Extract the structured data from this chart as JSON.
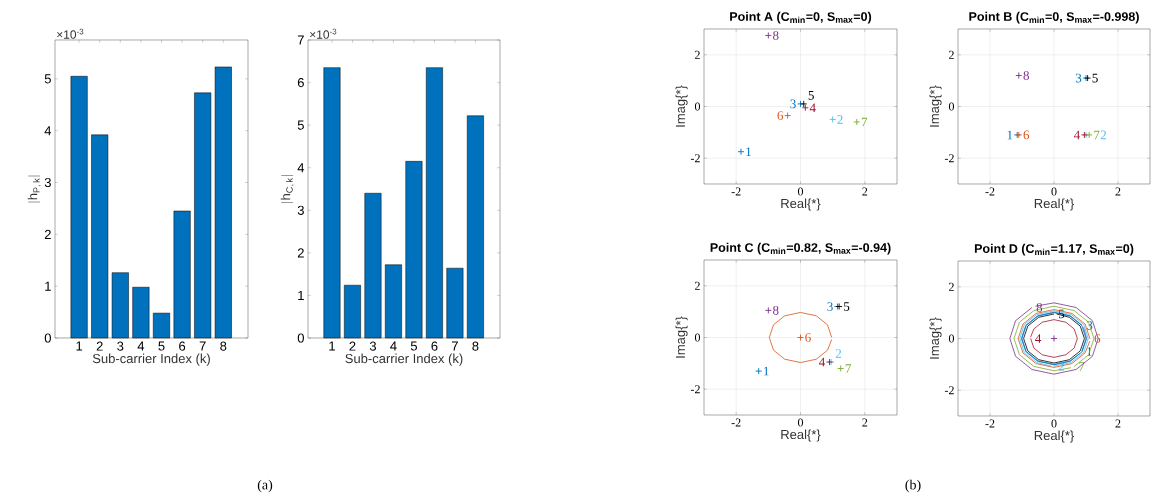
{
  "chart_data": [
    {
      "type": "bar",
      "categories": [
        "1",
        "2",
        "3",
        "4",
        "5",
        "6",
        "7",
        "8"
      ],
      "values": [
        5.05,
        3.92,
        1.26,
        0.98,
        0.48,
        2.45,
        4.73,
        5.23
      ],
      "color": "#0072bd",
      "xlabel": "Sub-carrier Index (k)",
      "ylabel": "|\\mathrm{h}_{\\mathrm{P,\\,k}}|",
      "ylim": [
        0,
        5.75
      ],
      "yticks": [
        0,
        1,
        2,
        3,
        4,
        5
      ],
      "annotations": [
        "×10$^{-3}$",
        "(a)"
      ]
    },
    {
      "type": "bar",
      "categories": [
        "1",
        "2",
        "3",
        "4",
        "5",
        "6",
        "7",
        "8"
      ],
      "values": [
        6.35,
        1.24,
        3.4,
        1.72,
        4.15,
        6.35,
        1.64,
        5.22
      ],
      "color": "#0072bd",
      "xlabel": "Sub-carrier Index (k)",
      "ylabel": "|\\mathrm{h}_{\\mathrm{C,\\,k}}|",
      "ylim": [
        0,
        7
      ],
      "yticks": [
        0,
        1,
        2,
        3,
        4,
        5,
        6,
        7
      ],
      "annotations": [
        "×10$^{-3}$"
      ]
    },
    {
      "type": "scatter",
      "title": "Point A (C$_{min}$=0, S$_{max}$=0)",
      "xlabel": "Real{*}",
      "ylabel": "Imag{*}",
      "xlim": [
        -3,
        3
      ],
      "ylim": [
        -3,
        3
      ],
      "xticks": [
        -2,
        0,
        2
      ],
      "yticks": [
        -2,
        0,
        2
      ],
      "grid": true,
      "marker": "cross",
      "annotations": [
        "(b)"
      ],
      "series": [
        {
          "name": "1",
          "color": "#0072bd",
          "x": [
            -1.85
          ],
          "values": [
            -1.75
          ]
        },
        {
          "name": "2",
          "color": "#4dbeee",
          "x": [
            1.0
          ],
          "values": [
            -0.5
          ]
        },
        {
          "name": "3",
          "color": "#0072bd",
          "x": [
            0.0
          ],
          "values": [
            0.1
          ]
        },
        {
          "name": "4",
          "color": "#a2142f",
          "x": [
            0.15
          ],
          "values": [
            -0.05
          ]
        },
        {
          "name": "5",
          "color": "#000000",
          "x": [
            0.1
          ],
          "values": [
            0.1
          ]
        },
        {
          "name": "6",
          "color": "#d95319",
          "x": [
            -0.4
          ],
          "values": [
            -0.35
          ]
        },
        {
          "name": "7",
          "color": "#77ac30",
          "x": [
            1.75
          ],
          "values": [
            -0.6
          ]
        },
        {
          "name": "8",
          "color": "#7e2f8e",
          "x": [
            -1.0
          ],
          "values": [
            2.75
          ]
        }
      ]
    },
    {
      "type": "scatter",
      "title": "Point B (C$_{min}$=0, S$_{max}$=-0.998)",
      "xlabel": "Real{*}",
      "ylabel": "Imag{*}",
      "xlim": [
        -3,
        3
      ],
      "ylim": [
        -3,
        3
      ],
      "xticks": [
        -2,
        0,
        2
      ],
      "yticks": [
        -2,
        0,
        2
      ],
      "grid": true,
      "marker": "cross",
      "series": [
        {
          "name": "1",
          "color": "#0072bd",
          "x": [
            -1.15
          ],
          "values": [
            -1.1
          ]
        },
        {
          "name": "2",
          "color": "#4dbeee",
          "x": [
            1.0
          ],
          "values": [
            -1.1
          ]
        },
        {
          "name": "3",
          "color": "#0072bd",
          "x": [
            1.0
          ],
          "values": [
            1.1
          ]
        },
        {
          "name": "4",
          "color": "#a2142f",
          "x": [
            0.95
          ],
          "values": [
            -1.1
          ]
        },
        {
          "name": "5",
          "color": "#000000",
          "x": [
            1.05
          ],
          "values": [
            1.1
          ]
        },
        {
          "name": "6",
          "color": "#d95319",
          "x": [
            -1.1
          ],
          "values": [
            -1.1
          ]
        },
        {
          "name": "7",
          "color": "#77ac30",
          "x": [
            1.1
          ],
          "values": [
            -1.1
          ]
        },
        {
          "name": "8",
          "color": "#7e2f8e",
          "x": [
            -1.1
          ],
          "values": [
            1.2
          ]
        }
      ]
    },
    {
      "type": "scatter",
      "title": "Point C (C$_{min}$=0.82, S$_{max}$=-0.94)",
      "xlabel": "Real{*}",
      "ylabel": "Imag{*}",
      "xlim": [
        -3,
        3
      ],
      "ylim": [
        -3,
        3
      ],
      "xticks": [
        -2,
        0,
        2
      ],
      "yticks": [
        -2,
        0,
        2
      ],
      "grid": true,
      "series": [
        {
          "name": "1",
          "color": "#0072bd",
          "marker": "cross",
          "x": [
            -1.3
          ],
          "values": [
            -1.3
          ]
        },
        {
          "name": "2",
          "color": "#4dbeee",
          "marker": "cross",
          "x": [
            0.95
          ],
          "values": [
            -0.95
          ]
        },
        {
          "name": "3",
          "color": "#0072bd",
          "marker": "cross",
          "x": [
            1.15
          ],
          "values": [
            1.2
          ]
        },
        {
          "name": "4",
          "color": "#a2142f",
          "marker": "cross",
          "x": [
            0.9
          ],
          "values": [
            -0.95
          ]
        },
        {
          "name": "5",
          "color": "#000000",
          "marker": "cross",
          "x": [
            1.2
          ],
          "values": [
            1.2
          ]
        },
        {
          "name": "6",
          "color": "#d95319",
          "marker": "cross",
          "x": [
            0.0
          ],
          "values": [
            0.0
          ]
        },
        {
          "name": "7",
          "color": "#77ac30",
          "marker": "cross",
          "x": [
            1.25
          ],
          "values": [
            -1.2
          ]
        },
        {
          "name": "8",
          "color": "#7e2f8e",
          "marker": "cross",
          "x": [
            -1.0
          ],
          "values": [
            1.05
          ]
        },
        {
          "type": "line",
          "color": "#d95319",
          "x": [
            0.97,
            0.84,
            0.49,
            0,
            -0.49,
            -0.84,
            -0.97,
            -0.84,
            -0.49,
            0,
            0.49,
            0.84,
            0.97
          ],
          "values": [
            0,
            0.49,
            0.84,
            0.97,
            0.84,
            0.49,
            0,
            -0.49,
            -0.84,
            -0.97,
            -0.84,
            -0.49,
            -0.08
          ]
        }
      ]
    },
    {
      "type": "scatter",
      "title": "Point D (C$_{min}$=1.17, S$_{max}$=0)",
      "xlabel": "Real{*}",
      "ylabel": "Imag{*}",
      "xlim": [
        -3,
        3
      ],
      "ylim": [
        -3,
        3
      ],
      "xticks": [
        -2,
        0,
        2
      ],
      "yticks": [
        -2,
        0,
        2
      ],
      "grid": true,
      "series": [
        {
          "type": "line",
          "name": "1",
          "color": "#0072bd",
          "x": [
            0.87,
            1,
            0.87,
            0.5,
            0,
            -0.5,
            -0.87,
            -1,
            -0.87,
            -0.5,
            0,
            0.5,
            0.82
          ],
          "values": [
            -0.5,
            0,
            0.5,
            0.87,
            1,
            0.87,
            0.5,
            0,
            -0.5,
            -0.87,
            -1,
            -0.87,
            -0.57
          ]
        },
        {
          "type": "line",
          "name": "2",
          "color": "#4dbeee",
          "x": [
            0,
            0.54,
            0.93,
            1.07,
            0.93,
            0.54,
            0,
            -0.54,
            -0.93,
            -1.07,
            -0.93,
            -0.54,
            -0.09
          ],
          "values": [
            -1.07,
            -0.93,
            -0.54,
            0,
            0.54,
            0.93,
            1.07,
            0.93,
            0.54,
            0,
            -0.54,
            -0.93,
            -1.07
          ]
        },
        {
          "type": "line",
          "name": "3",
          "color": "#0072bd",
          "x": [
            0.88,
            0.51,
            0,
            -0.51,
            -0.88,
            -1.02,
            -0.88,
            -0.51,
            0,
            0.51,
            0.88,
            1.02,
            0.92
          ],
          "values": [
            0.51,
            0.88,
            1.02,
            0.88,
            0.51,
            0,
            -0.51,
            -0.88,
            -1.02,
            -0.88,
            -0.51,
            0,
            0.43
          ]
        },
        {
          "type": "line",
          "name": "4",
          "color": "#a2142f",
          "x": [
            -0.73,
            -0.63,
            -0.37,
            0,
            0.37,
            0.63,
            0.73,
            0.63,
            0.37,
            0,
            -0.37,
            -0.63,
            -0.73
          ],
          "values": [
            0,
            -0.37,
            -0.63,
            -0.73,
            -0.63,
            -0.37,
            0,
            0.37,
            0.63,
            0.73,
            0.63,
            0.37,
            0.06
          ]
        },
        {
          "type": "line",
          "name": "5",
          "color": "#000000",
          "x": [
            0,
            -0.48,
            -0.82,
            -0.95,
            -0.82,
            -0.48,
            0,
            0.48,
            0.82,
            0.95,
            0.82,
            0.48,
            0.08
          ],
          "values": [
            0.95,
            0.82,
            0.48,
            0,
            -0.48,
            -0.82,
            -0.95,
            -0.82,
            -0.48,
            0,
            0.48,
            0.82,
            0.95
          ]
        },
        {
          "type": "line",
          "name": "6",
          "color": "#d95319",
          "x": [
            1.12,
            0.97,
            0.56,
            0,
            -0.56,
            -0.97,
            -1.12,
            -0.97,
            -0.56,
            0,
            0.56,
            0.97,
            1.12
          ],
          "values": [
            0,
            0.56,
            0.97,
            1.12,
            0.97,
            0.56,
            0,
            -0.56,
            -0.97,
            -1.12,
            -0.97,
            -0.56,
            -0.1
          ]
        },
        {
          "type": "line",
          "name": "7",
          "color": "#77ac30",
          "x": [
            0.63,
            1.08,
            1.25,
            1.08,
            0.63,
            0,
            -0.63,
            -1.08,
            -1.25,
            -1.08,
            -0.63,
            0,
            0.53
          ],
          "values": [
            -1.08,
            -0.63,
            0,
            0.63,
            1.08,
            1.25,
            1.08,
            0.63,
            0,
            -0.63,
            -1.08,
            -1.25,
            -1.13
          ]
        },
        {
          "type": "line",
          "name": "8",
          "color": "#7e2f8e",
          "x": [
            -0.69,
            -1.2,
            -1.38,
            -1.2,
            -0.69,
            0,
            0.69,
            1.2,
            1.38,
            1.2,
            0.69,
            0,
            -0.58
          ],
          "values": [
            1.2,
            0.69,
            0,
            -0.69,
            -1.2,
            -1.38,
            -1.2,
            -0.69,
            0,
            0.69,
            1.2,
            1.38,
            1.25
          ]
        },
        {
          "color": "#7e2f8e",
          "marker": "cross",
          "x": [
            0
          ],
          "values": [
            0
          ]
        }
      ]
    }
  ]
}
